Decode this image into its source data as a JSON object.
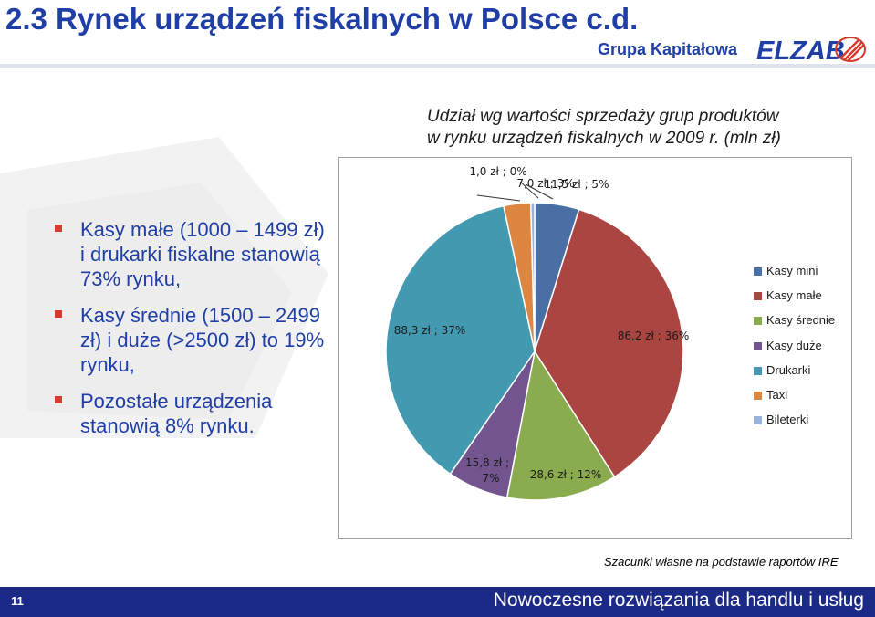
{
  "slide": {
    "title": "2.3 Rynek urządzeń fiskalnych w Polsce c.d.",
    "group_label": "Grupa Kapitałowa",
    "logo_text": "ELZAB"
  },
  "bullets": [
    "Kasy małe (1000 – 1499 zł) i drukarki fiskalne stanowią 73% rynku,",
    "Kasy średnie (1500 – 2499 zł) i duże (>2500 zł) to 19% rynku,",
    "Pozostałe urządzenia stanowią 8% rynku."
  ],
  "chart_data": {
    "type": "pie",
    "title_line1": "Udział wg wartości sprzedaży grup produktów",
    "title_line2": "w rynku urządzeń fiskalnych w 2009 r. (mln zł)",
    "slices": [
      {
        "name": "Kasy mini",
        "value": 11.5,
        "percent": 5,
        "label": "11,5 zł ; 5%",
        "color": "#4a6fa5"
      },
      {
        "name": "Kasy małe",
        "value": 86.2,
        "percent": 36,
        "label": "86,2 zł ; 36%",
        "color": "#aa4542"
      },
      {
        "name": "Kasy średnie",
        "value": 28.6,
        "percent": 12,
        "label": "28,6 zł ; 12%",
        "color": "#8aac4e"
      },
      {
        "name": "Kasy duże",
        "value": 15.8,
        "percent": 7,
        "label_line1": "15,8 zł ;",
        "label_line2": "7%",
        "color": "#72558f"
      },
      {
        "name": "Drukarki",
        "value": 88.3,
        "percent": 37,
        "label": "88,3 zł ; 37%",
        "color": "#4399b0"
      },
      {
        "name": "Taxi",
        "value": 7.0,
        "percent": 3,
        "label": "7,0 zł ; 3%",
        "color": "#dc8642"
      },
      {
        "name": "Bileterki",
        "value": 1.0,
        "percent": 0,
        "label": "1,0 zł ; 0%",
        "color": "#9cb3d8"
      }
    ],
    "legend_position": "right"
  },
  "source_note": "Szacunki własne na podstawie raportów IRE",
  "footer": {
    "page_number": "11",
    "text": "Nowoczesne rozwiązania dla handlu i usług"
  }
}
